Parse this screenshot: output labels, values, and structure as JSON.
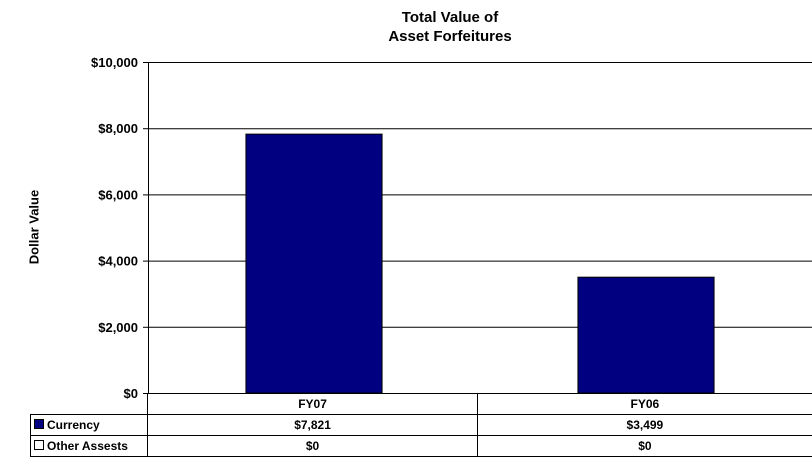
{
  "chart_data": {
    "type": "bar",
    "title": [
      "Total Value of",
      "Asset Forfeitures"
    ],
    "ylabel": "Dollar Value",
    "categories": [
      "FY07",
      "FY06"
    ],
    "ylim": [
      0,
      10000
    ],
    "yticks": [
      "$10,000",
      "$8,000",
      "$6,000",
      "$4,000",
      "$2,000",
      "$0"
    ],
    "ytick_values": [
      10000,
      8000,
      6000,
      4000,
      2000,
      0
    ],
    "grid": true,
    "series": [
      {
        "name": "Currency",
        "values": [
          7821,
          3499
        ],
        "labels": [
          "$7,821",
          "$3,499"
        ],
        "color": "#000080"
      },
      {
        "name": "Other Assests",
        "values": [
          0,
          0
        ],
        "labels": [
          "$0",
          "$0"
        ],
        "color": "#ffffff"
      }
    ],
    "legend": "data-table"
  }
}
